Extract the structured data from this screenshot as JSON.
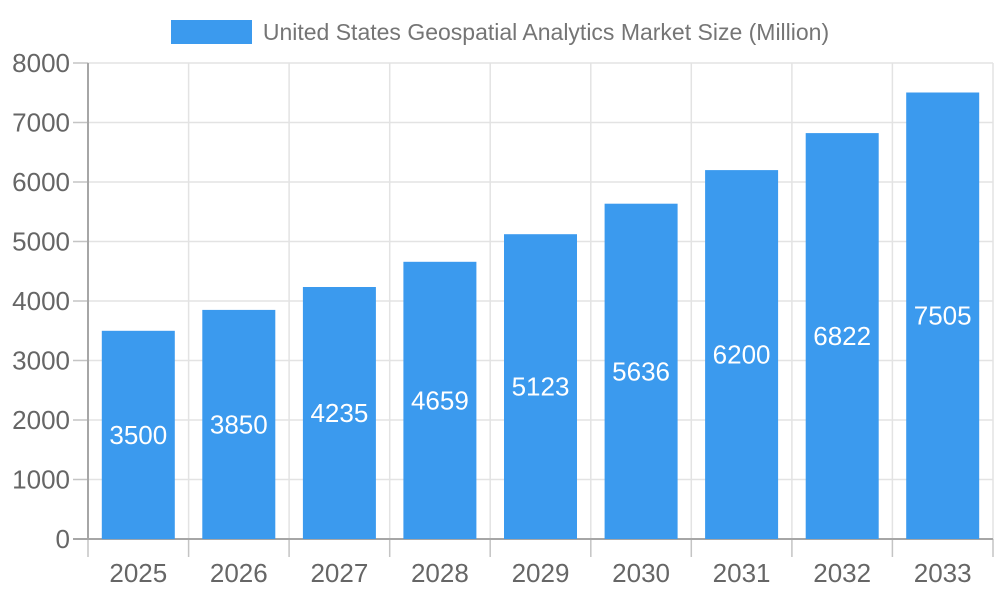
{
  "chart_data": {
    "type": "bar",
    "title": "United States Geospatial Analytics Market Size (Million)",
    "categories": [
      "2025",
      "2026",
      "2027",
      "2028",
      "2029",
      "2030",
      "2031",
      "2032",
      "2033"
    ],
    "values": [
      3500,
      3850,
      4235,
      4659,
      5123,
      5636,
      6200,
      6822,
      7505
    ],
    "xlabel": "",
    "ylabel": "",
    "ylim": [
      0,
      8000
    ],
    "yticks": [
      0,
      1000,
      2000,
      3000,
      4000,
      5000,
      6000,
      7000,
      8000
    ],
    "grid": true,
    "legend_position": "top",
    "value_label_position": "inside-center",
    "colors": {
      "bar": "#3B9AEE",
      "value_label": "#FFFFFF",
      "grid": "#E3E3E3",
      "axis": "#A6A6A6",
      "tick": "#C4C4C4",
      "tick_label": "#666666",
      "title": "#757575",
      "background": "#FFFFFF"
    }
  }
}
